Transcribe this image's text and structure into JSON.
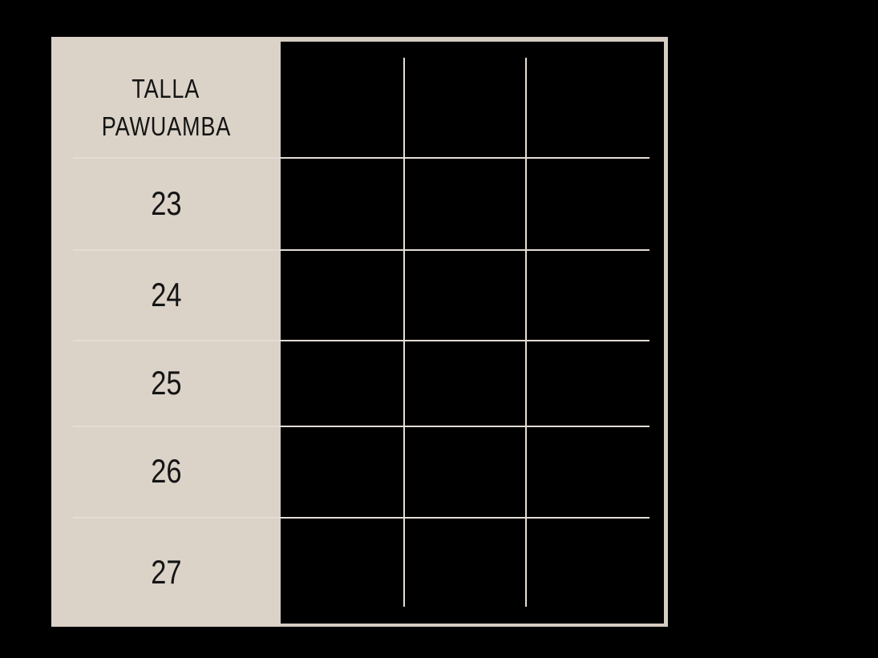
{
  "page": {
    "background_color": "#000000"
  },
  "table": {
    "header": {
      "line1": "TALLA",
      "line2": "PAWUAMBA"
    },
    "sizes": [
      "23",
      "24",
      "25",
      "26",
      "27"
    ],
    "data_columns": 3,
    "colors": {
      "panel": "#dbd2c8",
      "frame": "#d5ccc2",
      "grid_line": "#e4ddd4",
      "text": "#141414",
      "grid_background": "#000000"
    }
  },
  "chart_data": {
    "type": "table",
    "title": "TALLA PAWUAMBA",
    "row_labels": [
      "23",
      "24",
      "25",
      "26",
      "27"
    ],
    "data_columns": 3,
    "cell_values": [
      [
        "",
        "",
        ""
      ],
      [
        "",
        "",
        ""
      ],
      [
        "",
        "",
        ""
      ],
      [
        "",
        "",
        ""
      ],
      [
        "",
        "",
        ""
      ]
    ],
    "layout": {
      "label_column_side": "left",
      "grid_on": true,
      "empty_cells": true
    }
  }
}
